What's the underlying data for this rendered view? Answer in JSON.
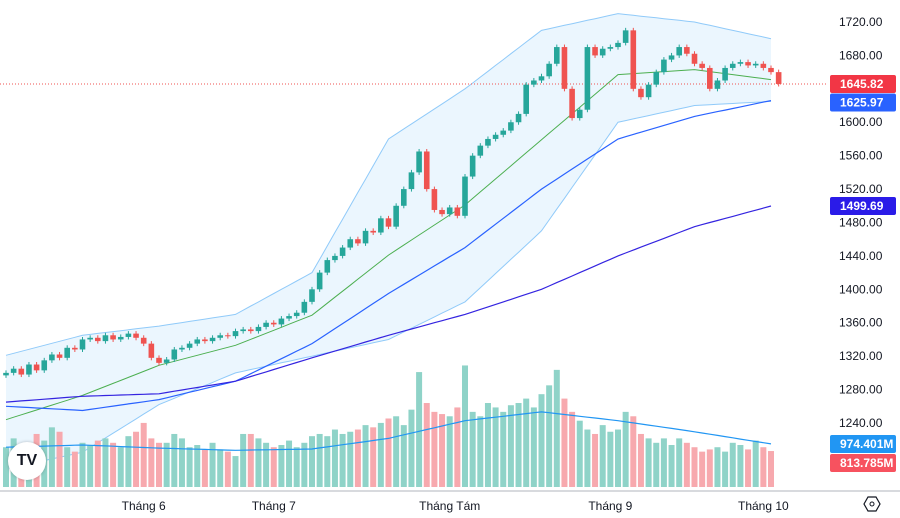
{
  "chart_data": {
    "type": "candlestick",
    "price_axis": {
      "ticks": [
        "1720.00",
        "1680.00",
        "1600.00",
        "1560.00",
        "1520.00",
        "1480.00",
        "1440.00",
        "1400.00",
        "1360.00",
        "1320.00",
        "1280.00",
        "1240.00"
      ],
      "range": [
        1240,
        1720
      ]
    },
    "x_ticks": [
      "Tháng 6",
      "Tháng 7",
      "Tháng Tám",
      "Tháng 9",
      "Tháng 10"
    ],
    "x_tick_index": [
      18,
      35,
      58,
      79,
      99
    ],
    "closes": [
      1300,
      1305,
      1298,
      1310,
      1303,
      1315,
      1322,
      1318,
      1330,
      1328,
      1340,
      1342,
      1338,
      1345,
      1340,
      1343,
      1347,
      1342,
      1335,
      1318,
      1312,
      1316,
      1328,
      1330,
      1335,
      1340,
      1338,
      1342,
      1345,
      1344,
      1350,
      1352,
      1350,
      1355,
      1360,
      1358,
      1365,
      1368,
      1372,
      1385,
      1400,
      1420,
      1435,
      1440,
      1450,
      1460,
      1455,
      1470,
      1468,
      1485,
      1475,
      1500,
      1520,
      1540,
      1565,
      1520,
      1495,
      1490,
      1498,
      1488,
      1535,
      1560,
      1572,
      1580,
      1585,
      1590,
      1600,
      1610,
      1645,
      1650,
      1655,
      1670,
      1690,
      1640,
      1605,
      1615,
      1690,
      1680,
      1688,
      1690,
      1695,
      1710,
      1640,
      1630,
      1645,
      1660,
      1675,
      1680,
      1690,
      1682,
      1670,
      1665,
      1640,
      1650,
      1665,
      1670,
      1672,
      1668,
      1670,
      1665,
      1660,
      1645.82
    ],
    "volumes_m": [
      900,
      1100,
      700,
      650,
      1200,
      1050,
      1350,
      1250,
      900,
      800,
      1000,
      950,
      1050,
      1100,
      1000,
      900,
      1150,
      1250,
      1450,
      1100,
      1000,
      1000,
      1200,
      1100,
      900,
      950,
      850,
      1000,
      850,
      800,
      700,
      1200,
      1200,
      1100,
      1000,
      900,
      950,
      1050,
      900,
      1000,
      1150,
      1200,
      1150,
      1300,
      1200,
      1250,
      1300,
      1400,
      1350,
      1450,
      1550,
      1600,
      1400,
      1750,
      2600,
      1900,
      1700,
      1650,
      1600,
      1800,
      2750,
      1700,
      1600,
      1900,
      1800,
      1700,
      1850,
      1900,
      2000,
      1800,
      2100,
      2300,
      2650,
      2000,
      1700,
      1500,
      1300,
      1200,
      1400,
      1250,
      1300,
      1700,
      1600,
      1200,
      1100,
      1000,
      1100,
      950,
      1100,
      1000,
      900,
      800,
      850,
      900,
      800,
      1000,
      950,
      850,
      1050,
      900,
      813.785
    ],
    "overlays": {
      "sample_index": [
        0,
        10,
        20,
        30,
        40,
        50,
        60,
        70,
        80,
        90,
        100
      ],
      "bb_basis": [
        1244,
        1273,
        1309,
        1333,
        1369,
        1441,
        1501,
        1579,
        1657,
        1663,
        1651
      ],
      "bb_upper": [
        1321,
        1345,
        1356,
        1370,
        1420,
        1580,
        1640,
        1710,
        1730,
        1720,
        1700
      ],
      "bb_lower": [
        1185,
        1205,
        1262,
        1300,
        1320,
        1340,
        1385,
        1470,
        1600,
        1620,
        1625
      ],
      "ma_blue": [
        1260,
        1255,
        1268,
        1290,
        1335,
        1395,
        1450,
        1520,
        1580,
        1607,
        1625.97
      ],
      "ma_navy": [
        1265,
        1272,
        1275,
        1290,
        1318,
        1345,
        1370,
        1400,
        1440,
        1475,
        1499.69
      ],
      "volume_ma_m": [
        900,
        950,
        880,
        830,
        860,
        1100,
        1500,
        1700,
        1500,
        1250,
        974.401
      ]
    },
    "labels": {
      "last_price": "1645.82",
      "ma_blue": "1625.97",
      "ma_navy": "1499.69",
      "volume_ma": "974.401M",
      "volume": "813.785M"
    },
    "colors": {
      "up": "#26a69a",
      "down": "#ef5350",
      "vol_up": "#8fd3c8",
      "vol_down": "#f7a9ae",
      "bb_fill": "#e3f2fd",
      "bb_line": "#90caf9",
      "basis": "#4caf50",
      "ma_blue": "#2962ff",
      "ma_navy": "#3424e0",
      "vol_ma": "#2196f3"
    }
  },
  "logo_text": "TV"
}
